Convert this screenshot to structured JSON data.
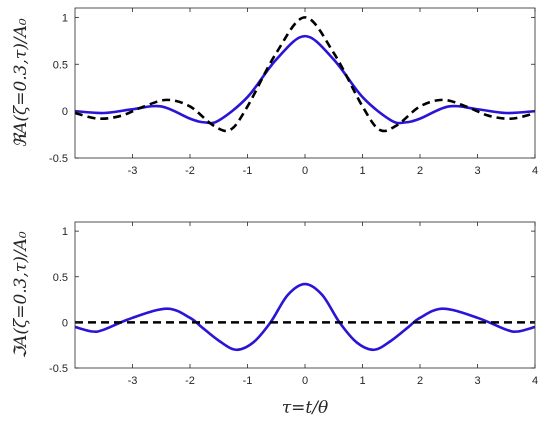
{
  "chart_data": [
    {
      "type": "line",
      "ylabel": "ℜA(ζ=0.3,τ)/A₀",
      "xlabel": "",
      "xlim": [
        -4,
        4
      ],
      "ylim": [
        -0.5,
        1.1
      ],
      "xticks": [
        -3,
        -2,
        -1,
        0,
        1,
        2,
        3,
        4
      ],
      "yticks": [
        -0.5,
        0,
        0.5,
        1
      ],
      "ytick_labels": [
        "-0.5",
        "0",
        "0.5",
        "1"
      ],
      "grid": false,
      "series": [
        {
          "style": "solid",
          "color": "#2a14d6",
          "x": [
            -4,
            -3.5,
            -3.0,
            -2.5,
            -2.0,
            -1.75,
            -1.5,
            -1.0,
            -0.5,
            0,
            0.5,
            1.0,
            1.5,
            1.75,
            2.0,
            2.5,
            3.0,
            3.5,
            4
          ],
          "y": [
            0.0,
            -0.02,
            0.02,
            0.05,
            -0.08,
            -0.12,
            -0.1,
            0.15,
            0.55,
            0.8,
            0.55,
            0.15,
            -0.1,
            -0.12,
            -0.08,
            0.05,
            0.02,
            -0.02,
            0.0
          ]
        },
        {
          "style": "dashed",
          "color": "#000000",
          "x": [
            -4,
            -3.6,
            -3.2,
            -2.8,
            -2.4,
            -2.0,
            -1.6,
            -1.3,
            -1.0,
            -0.5,
            0,
            0.5,
            1.0,
            1.3,
            1.6,
            2.0,
            2.4,
            2.8,
            3.2,
            3.6,
            4
          ],
          "y": [
            -0.02,
            -0.08,
            -0.05,
            0.05,
            0.12,
            0.05,
            -0.15,
            -0.2,
            0.05,
            0.62,
            1.0,
            0.62,
            0.05,
            -0.2,
            -0.15,
            0.05,
            0.12,
            0.05,
            -0.05,
            -0.08,
            -0.02
          ]
        }
      ]
    },
    {
      "type": "line",
      "ylabel": "ℑA(ζ=0.3,τ)/A₀",
      "xlabel": "τ=t/θ",
      "xlim": [
        -4,
        4
      ],
      "ylim": [
        -0.5,
        1.1
      ],
      "xticks": [
        -3,
        -2,
        -1,
        0,
        1,
        2,
        3,
        4
      ],
      "yticks": [
        -0.5,
        0,
        0.5,
        1
      ],
      "ytick_labels": [
        "-0.5",
        "0",
        "0.5",
        "1"
      ],
      "grid": false,
      "series": [
        {
          "style": "solid",
          "color": "#2a14d6",
          "x": [
            -4,
            -3.7,
            -3.5,
            -3.0,
            -2.4,
            -2.0,
            -1.8,
            -1.5,
            -1.2,
            -0.9,
            -0.6,
            -0.3,
            0,
            0.3,
            0.6,
            0.9,
            1.2,
            1.5,
            1.8,
            2.0,
            2.4,
            3.0,
            3.5,
            3.7,
            4
          ],
          "y": [
            -0.05,
            -0.1,
            -0.08,
            0.05,
            0.15,
            0.05,
            -0.05,
            -0.2,
            -0.3,
            -0.22,
            0.0,
            0.3,
            0.42,
            0.3,
            0.0,
            -0.22,
            -0.3,
            -0.2,
            -0.05,
            0.05,
            0.15,
            0.05,
            -0.08,
            -0.1,
            -0.05
          ]
        },
        {
          "style": "dashed",
          "color": "#000000",
          "x": [
            -4,
            4
          ],
          "y": [
            0,
            0
          ]
        }
      ]
    }
  ]
}
